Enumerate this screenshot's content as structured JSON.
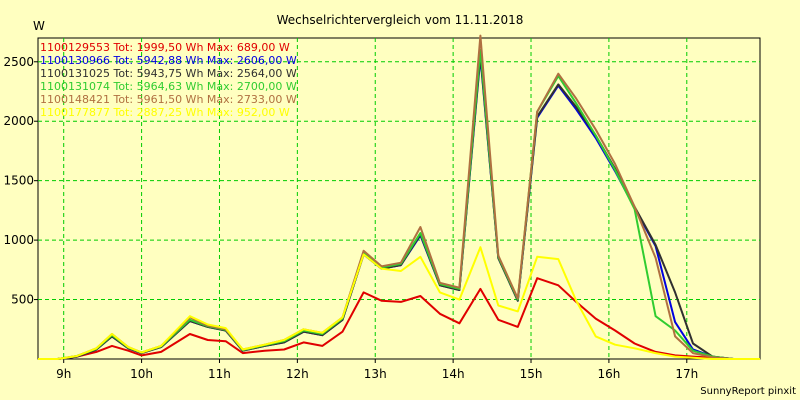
{
  "chart_data": {
    "type": "line",
    "title": "Wechselrichtervergleich vom 11.11.2018",
    "ylabel": "W",
    "xlabel": "",
    "credit": "SunnyReport pinxit",
    "ylim": [
      0,
      2700
    ],
    "xlim": [
      8.67,
      17.94
    ],
    "grid": true,
    "legend_position": "top-left",
    "x_ticks": [
      9,
      10,
      11,
      12,
      13,
      14,
      15,
      16,
      17
    ],
    "x_tick_labels": [
      "9h",
      "10h",
      "11h",
      "12h",
      "13h",
      "14h",
      "15h",
      "16h",
      "17h"
    ],
    "y_ticks": [
      500,
      1000,
      1500,
      2000,
      2500
    ],
    "y_tick_labels": [
      "500",
      "1000",
      "1500",
      "2000",
      "2500"
    ],
    "x": [
      8.67,
      8.92,
      9.17,
      9.42,
      9.62,
      9.83,
      10.0,
      10.25,
      10.62,
      10.85,
      11.08,
      11.3,
      11.58,
      11.83,
      12.08,
      12.32,
      12.58,
      12.85,
      13.08,
      13.33,
      13.58,
      13.83,
      14.08,
      14.35,
      14.58,
      14.83,
      15.08,
      15.35,
      15.58,
      15.83,
      16.08,
      16.33,
      16.6,
      16.85,
      17.08,
      17.33,
      17.6,
      17.94
    ],
    "series": [
      {
        "name": "1100129553",
        "legend": "1100129553 Tot: 1999,50 Wh Max: 689,00 W",
        "color": "#e00000",
        "values": [
          0,
          0,
          20,
          60,
          110,
          70,
          30,
          60,
          210,
          160,
          150,
          50,
          70,
          80,
          140,
          110,
          230,
          560,
          490,
          480,
          530,
          380,
          300,
          590,
          330,
          270,
          680,
          620,
          480,
          340,
          240,
          130,
          60,
          30,
          20,
          10,
          0,
          0
        ]
      },
      {
        "name": "1100130966",
        "legend": "1100130966 Tot: 5942,88 Wh Max: 2606,00 W",
        "color": "#0000e0",
        "values": [
          0,
          0,
          20,
          80,
          190,
          90,
          50,
          100,
          320,
          270,
          240,
          70,
          110,
          140,
          230,
          200,
          330,
          880,
          760,
          790,
          1040,
          620,
          580,
          2540,
          850,
          490,
          2030,
          2300,
          2100,
          1860,
          1580,
          1270,
          950,
          310,
          80,
          20,
          0,
          0
        ]
      },
      {
        "name": "1100131025",
        "legend": "1100131025 Tot: 5943,75 Wh Max: 2564,00 W",
        "color": "#303030",
        "values": [
          0,
          0,
          20,
          80,
          190,
          90,
          50,
          100,
          320,
          270,
          240,
          70,
          110,
          140,
          230,
          200,
          330,
          880,
          760,
          790,
          1050,
          620,
          580,
          2560,
          850,
          490,
          2040,
          2310,
          2120,
          1880,
          1600,
          1280,
          960,
          560,
          130,
          20,
          0,
          0
        ]
      },
      {
        "name": "1100131074",
        "legend": "1100131074 Tot: 5964,63 Wh Max: 2700,00 W",
        "color": "#30cc30",
        "values": [
          0,
          0,
          25,
          85,
          200,
          95,
          55,
          105,
          330,
          275,
          245,
          75,
          115,
          150,
          240,
          210,
          340,
          890,
          770,
          800,
          1060,
          630,
          590,
          2600,
          860,
          500,
          2080,
          2380,
          2150,
          1880,
          1590,
          1260,
          360,
          240,
          70,
          20,
          0,
          0
        ]
      },
      {
        "name": "1100148421",
        "legend": "1100148421 Tot: 5961,50 Wh Max: 2733,00 W",
        "color": "#b07040",
        "values": [
          0,
          0,
          25,
          90,
          210,
          100,
          55,
          110,
          350,
          280,
          250,
          80,
          120,
          160,
          250,
          220,
          350,
          910,
          780,
          810,
          1110,
          640,
          600,
          2720,
          870,
          510,
          2080,
          2400,
          2190,
          1930,
          1640,
          1280,
          850,
          190,
          50,
          15,
          0,
          0
        ]
      },
      {
        "name": "1100177877",
        "legend": "1100177877 Tot: 2887,25 Wh Max: 952,00 W",
        "color": "#ffff00",
        "values": [
          0,
          0,
          25,
          90,
          210,
          100,
          55,
          110,
          360,
          290,
          260,
          80,
          120,
          160,
          250,
          220,
          350,
          880,
          760,
          740,
          860,
          560,
          500,
          940,
          450,
          400,
          860,
          840,
          490,
          190,
          120,
          90,
          50,
          20,
          10,
          0,
          0,
          0
        ]
      }
    ]
  }
}
